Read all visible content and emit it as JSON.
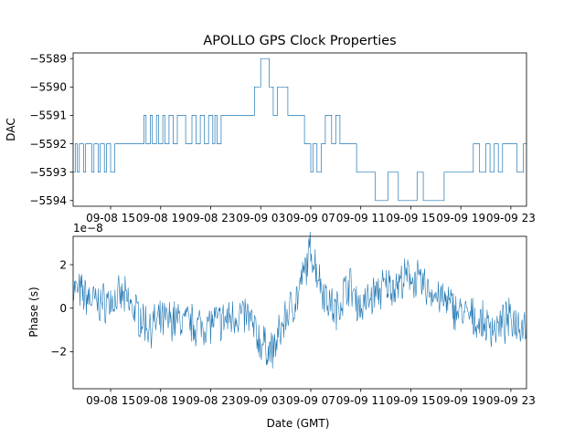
{
  "chart_data": [
    {
      "type": "line",
      "title": "APOLLO GPS Clock Properties",
      "xlabel": "",
      "ylabel": "DAC",
      "x_tick_labels": [
        "09-08 15",
        "09-08 19",
        "09-08 23",
        "09-09 03",
        "09-09 07",
        "09-09 11",
        "09-09 15",
        "09-09 19",
        "09-09 23"
      ],
      "y_tick_labels": [
        "−5589",
        "−5590",
        "−5591",
        "−5592",
        "−5593",
        "−5594"
      ],
      "ylim": [
        -5594.2,
        -5588.8
      ],
      "xlim": [
        "09-08 12:00",
        "09-10 00:15"
      ],
      "color": "#1f77b4",
      "series": [
        {
          "x": [
            "09-08 12:00",
            "09-08 12:10",
            "09-08 12:20",
            "09-08 12:30",
            "09-08 12:50",
            "09-08 13:00",
            "09-08 13:30",
            "09-08 13:40",
            "09-08 14:00",
            "09-08 14:10",
            "09-08 14:30",
            "09-08 14:40",
            "09-08 15:00",
            "09-08 15:20",
            "09-08 15:40",
            "09-08 16:00",
            "09-08 16:20",
            "09-08 17:30",
            "09-08 17:40",
            "09-08 17:50",
            "09-08 18:10",
            "09-08 18:20",
            "09-08 18:40",
            "09-08 18:50",
            "09-08 19:10",
            "09-08 19:20",
            "09-08 19:40",
            "09-08 20:00",
            "09-08 20:20",
            "09-08 20:40",
            "09-08 21:00",
            "09-08 21:30",
            "09-08 21:50",
            "09-08 22:10",
            "09-08 22:30",
            "09-08 22:50",
            "09-08 23:10",
            "09-08 23:20",
            "09-08 23:30",
            "09-08 23:50",
            "09-09 00:10",
            "09-09 00:30",
            "09-09 01:00",
            "09-09 01:30",
            "09-09 02:10",
            "09-09 02:30",
            "09-09 02:40",
            "09-09 03:00",
            "09-09 03:40",
            "09-09 04:00",
            "09-09 04:20",
            "09-09 04:40",
            "09-09 05:10",
            "09-09 05:30",
            "09-09 05:50",
            "09-09 06:10",
            "09-09 06:30",
            "09-09 07:00",
            "09-09 07:10",
            "09-09 07:30",
            "09-09 07:50",
            "09-09 08:10",
            "09-09 08:40",
            "09-09 09:00",
            "09-09 09:20",
            "09-09 09:40",
            "09-09 10:00",
            "09-09 10:20",
            "09-09 10:40",
            "09-09 11:00",
            "09-09 11:40",
            "09-09 12:10",
            "09-09 13:10",
            "09-09 13:30",
            "09-09 14:00",
            "09-09 14:20",
            "09-09 15:10",
            "09-09 15:30",
            "09-09 16:00",
            "09-09 16:30",
            "09-09 17:00",
            "09-09 17:40",
            "09-09 18:40",
            "09-09 19:20",
            "09-09 20:00",
            "09-09 20:30",
            "09-09 21:00",
            "09-09 21:20",
            "09-09 21:40",
            "09-09 22:00",
            "09-09 22:20",
            "09-09 23:00",
            "09-09 23:30",
            "09-10 00:00"
          ],
          "values": [
            -5593,
            -5592,
            -5593,
            -5592,
            -5593,
            -5592,
            -5593,
            -5592,
            -5593,
            -5592,
            -5593,
            -5592,
            -5593,
            -5592,
            -5592,
            -5592,
            -5592,
            -5592,
            -5591,
            -5592,
            -5591,
            -5592,
            -5591,
            -5592,
            -5591,
            -5592,
            -5591,
            -5592,
            -5591,
            -5591,
            -5592,
            -5591,
            -5592,
            -5591,
            -5592,
            -5591,
            -5592,
            -5591,
            -5592,
            -5591,
            -5591,
            -5591,
            -5591,
            -5591,
            -5591,
            -5590,
            -5590,
            -5589,
            -5590,
            -5591,
            -5590,
            -5590,
            -5591,
            -5591,
            -5591,
            -5591,
            -5592,
            -5593,
            -5592,
            -5593,
            -5592,
            -5591,
            -5592,
            -5591,
            -5592,
            -5592,
            -5592,
            -5592,
            -5593,
            -5593,
            -5593,
            -5594,
            -5593,
            -5593,
            -5594,
            -5594,
            -5594,
            -5593,
            -5594,
            -5594,
            -5594,
            -5593,
            -5593,
            -5593,
            -5592,
            -5593,
            -5592,
            -5593,
            -5592,
            -5593,
            -5592,
            -5592,
            -5593,
            -5592
          ]
        }
      ]
    },
    {
      "type": "line",
      "title": "",
      "xlabel": "Date (GMT)",
      "ylabel": "Phase (s)",
      "y_scale_label": "1e−8",
      "x_tick_labels": [
        "09-08 15",
        "09-08 19",
        "09-08 23",
        "09-09 03",
        "09-09 07",
        "09-09 11",
        "09-09 15",
        "09-09 19",
        "09-09 23"
      ],
      "y_tick_labels": [
        "2",
        "0",
        "−2"
      ],
      "ylim": [
        -3.7e-08,
        3.3e-08
      ],
      "xlim": [
        "09-08 12:00",
        "09-10 00:15"
      ],
      "color": "#1f77b4",
      "series": [
        {
          "x": [
            "09-08 12:00",
            "09-08 14:00",
            "09-08 16:00",
            "09-08 18:00",
            "09-08 20:00",
            "09-08 22:00",
            "09-09 00:00",
            "09-09 01:00",
            "09-09 02:00",
            "09-09 03:00",
            "09-09 04:00",
            "09-09 05:00",
            "09-09 06:00",
            "09-09 07:00",
            "09-09 08:00",
            "09-09 09:00",
            "09-09 10:00",
            "09-09 11:00",
            "09-09 12:00",
            "09-09 13:00",
            "09-09 14:00",
            "09-09 15:00",
            "09-09 16:00",
            "09-09 17:00",
            "09-09 18:00",
            "09-09 19:00",
            "09-09 20:00",
            "09-09 21:00",
            "09-09 22:00",
            "09-09 23:00",
            "09-10 00:00"
          ],
          "values": [
            9e-09,
            2e-09,
            5e-09,
            -8e-09,
            -5e-09,
            -8e-09,
            -6e-09,
            -3e-09,
            -4e-09,
            -1.6e-08,
            -2e-08,
            -4e-09,
            6e-09,
            2.7e-08,
            8e-09,
            -2e-09,
            1.2e-08,
            0.0,
            6e-09,
            1e-08,
            1.1e-08,
            1.5e-08,
            1e-08,
            6e-09,
            2e-09,
            -2e-09,
            -5e-09,
            -8e-09,
            -9e-09,
            -5e-09,
            -7e-09
          ]
        }
      ]
    }
  ]
}
